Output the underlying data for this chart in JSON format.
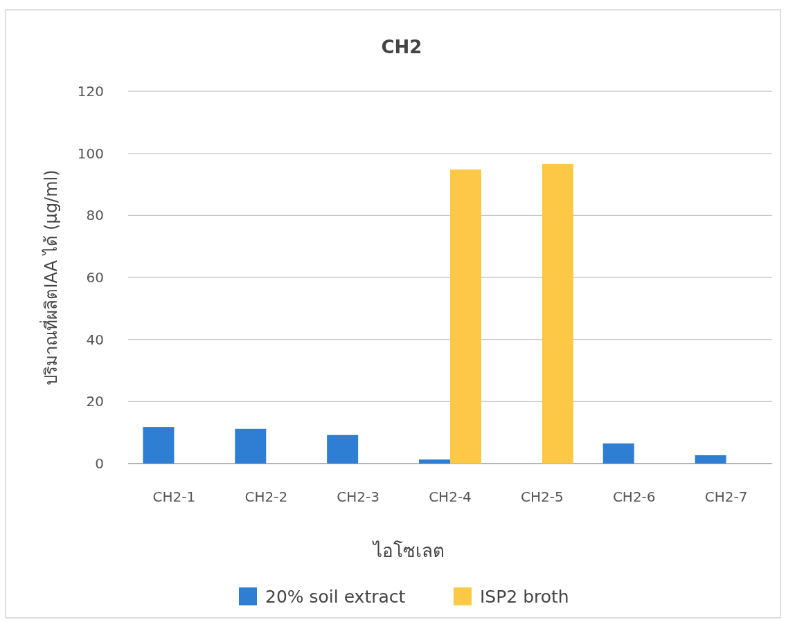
{
  "chart_data": {
    "type": "bar",
    "title": "CH2",
    "xlabel": "ไอโซเลต",
    "ylabel": "ปริมาณที่ผลิตIAA ได้ (µg/ml)",
    "categories": [
      "CH2-1",
      "CH2-2",
      "CH2-3",
      "CH2-4",
      "CH2-5",
      "CH2-6",
      "CH2-7"
    ],
    "series": [
      {
        "name": "20% soil extract",
        "color": "#2e7fd4",
        "values": [
          11.8,
          11.2,
          9.2,
          1.3,
          0,
          6.5,
          2.7
        ]
      },
      {
        "name": "ISP2 broth",
        "color": "#fcc845",
        "values": [
          0,
          0,
          0,
          94.8,
          96.6,
          0,
          0
        ]
      }
    ],
    "ylim": [
      0,
      120
    ],
    "yticks": [
      0,
      20,
      40,
      60,
      80,
      100,
      120
    ],
    "grid": "y",
    "legend": "bottom"
  }
}
